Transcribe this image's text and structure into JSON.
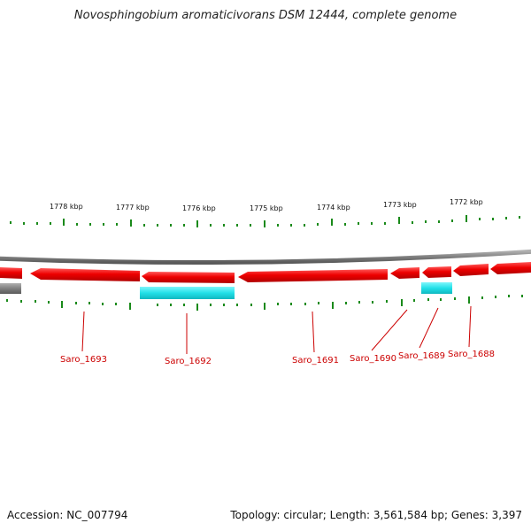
{
  "title": "Novosphingobium aromaticivorans DSM 12444, complete genome",
  "footer": {
    "accession": "Accession: NC_007794",
    "summary": "Topology: circular; Length: 3,561,584 bp; Genes: 3,397"
  },
  "scale_labels": [
    "1778 kbp",
    "1777 kbp",
    "1776 kbp",
    "1775 kbp",
    "1774 kbp",
    "1773 kbp",
    "1772 kbp"
  ],
  "gene_labels": [
    "Saro_1693",
    "Saro_1692",
    "Saro_1691",
    "Saro_1690",
    "Saro_1689",
    "Saro_1688"
  ],
  "colors": {
    "forward_gene": "#ee0000",
    "rna_track": "#22e0e8",
    "backbone": "#8a8a8a",
    "tick": "#1a8a1a",
    "label": "#cc0000"
  }
}
